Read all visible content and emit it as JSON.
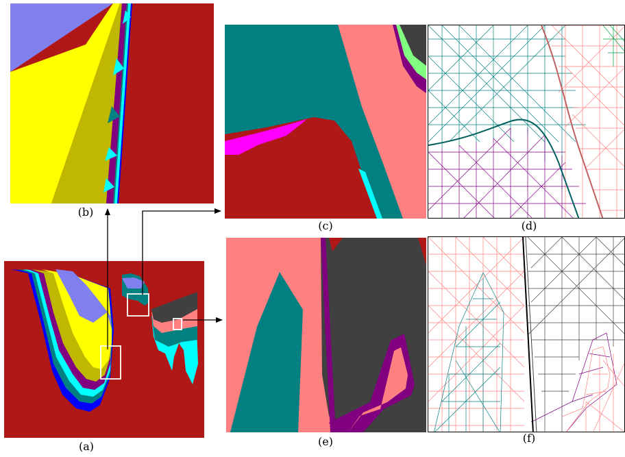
{
  "captions": {
    "a": "(a)",
    "b": "(b)",
    "c": "(c)",
    "d": "(d)",
    "e": "(e)",
    "f": "(f)"
  },
  "colors": {
    "background_red": "#b01818",
    "periwinkle": "#8080f0",
    "yellow": "#ffff00",
    "olive": "#c0b800",
    "teal": "#008080",
    "cyan": "#00ffff",
    "magenta": "#ff00ff",
    "purple": "#800080",
    "blue": "#0000ff",
    "salmon": "#ff8080",
    "dark_gray": "#404040",
    "light_green": "#80ff80"
  }
}
